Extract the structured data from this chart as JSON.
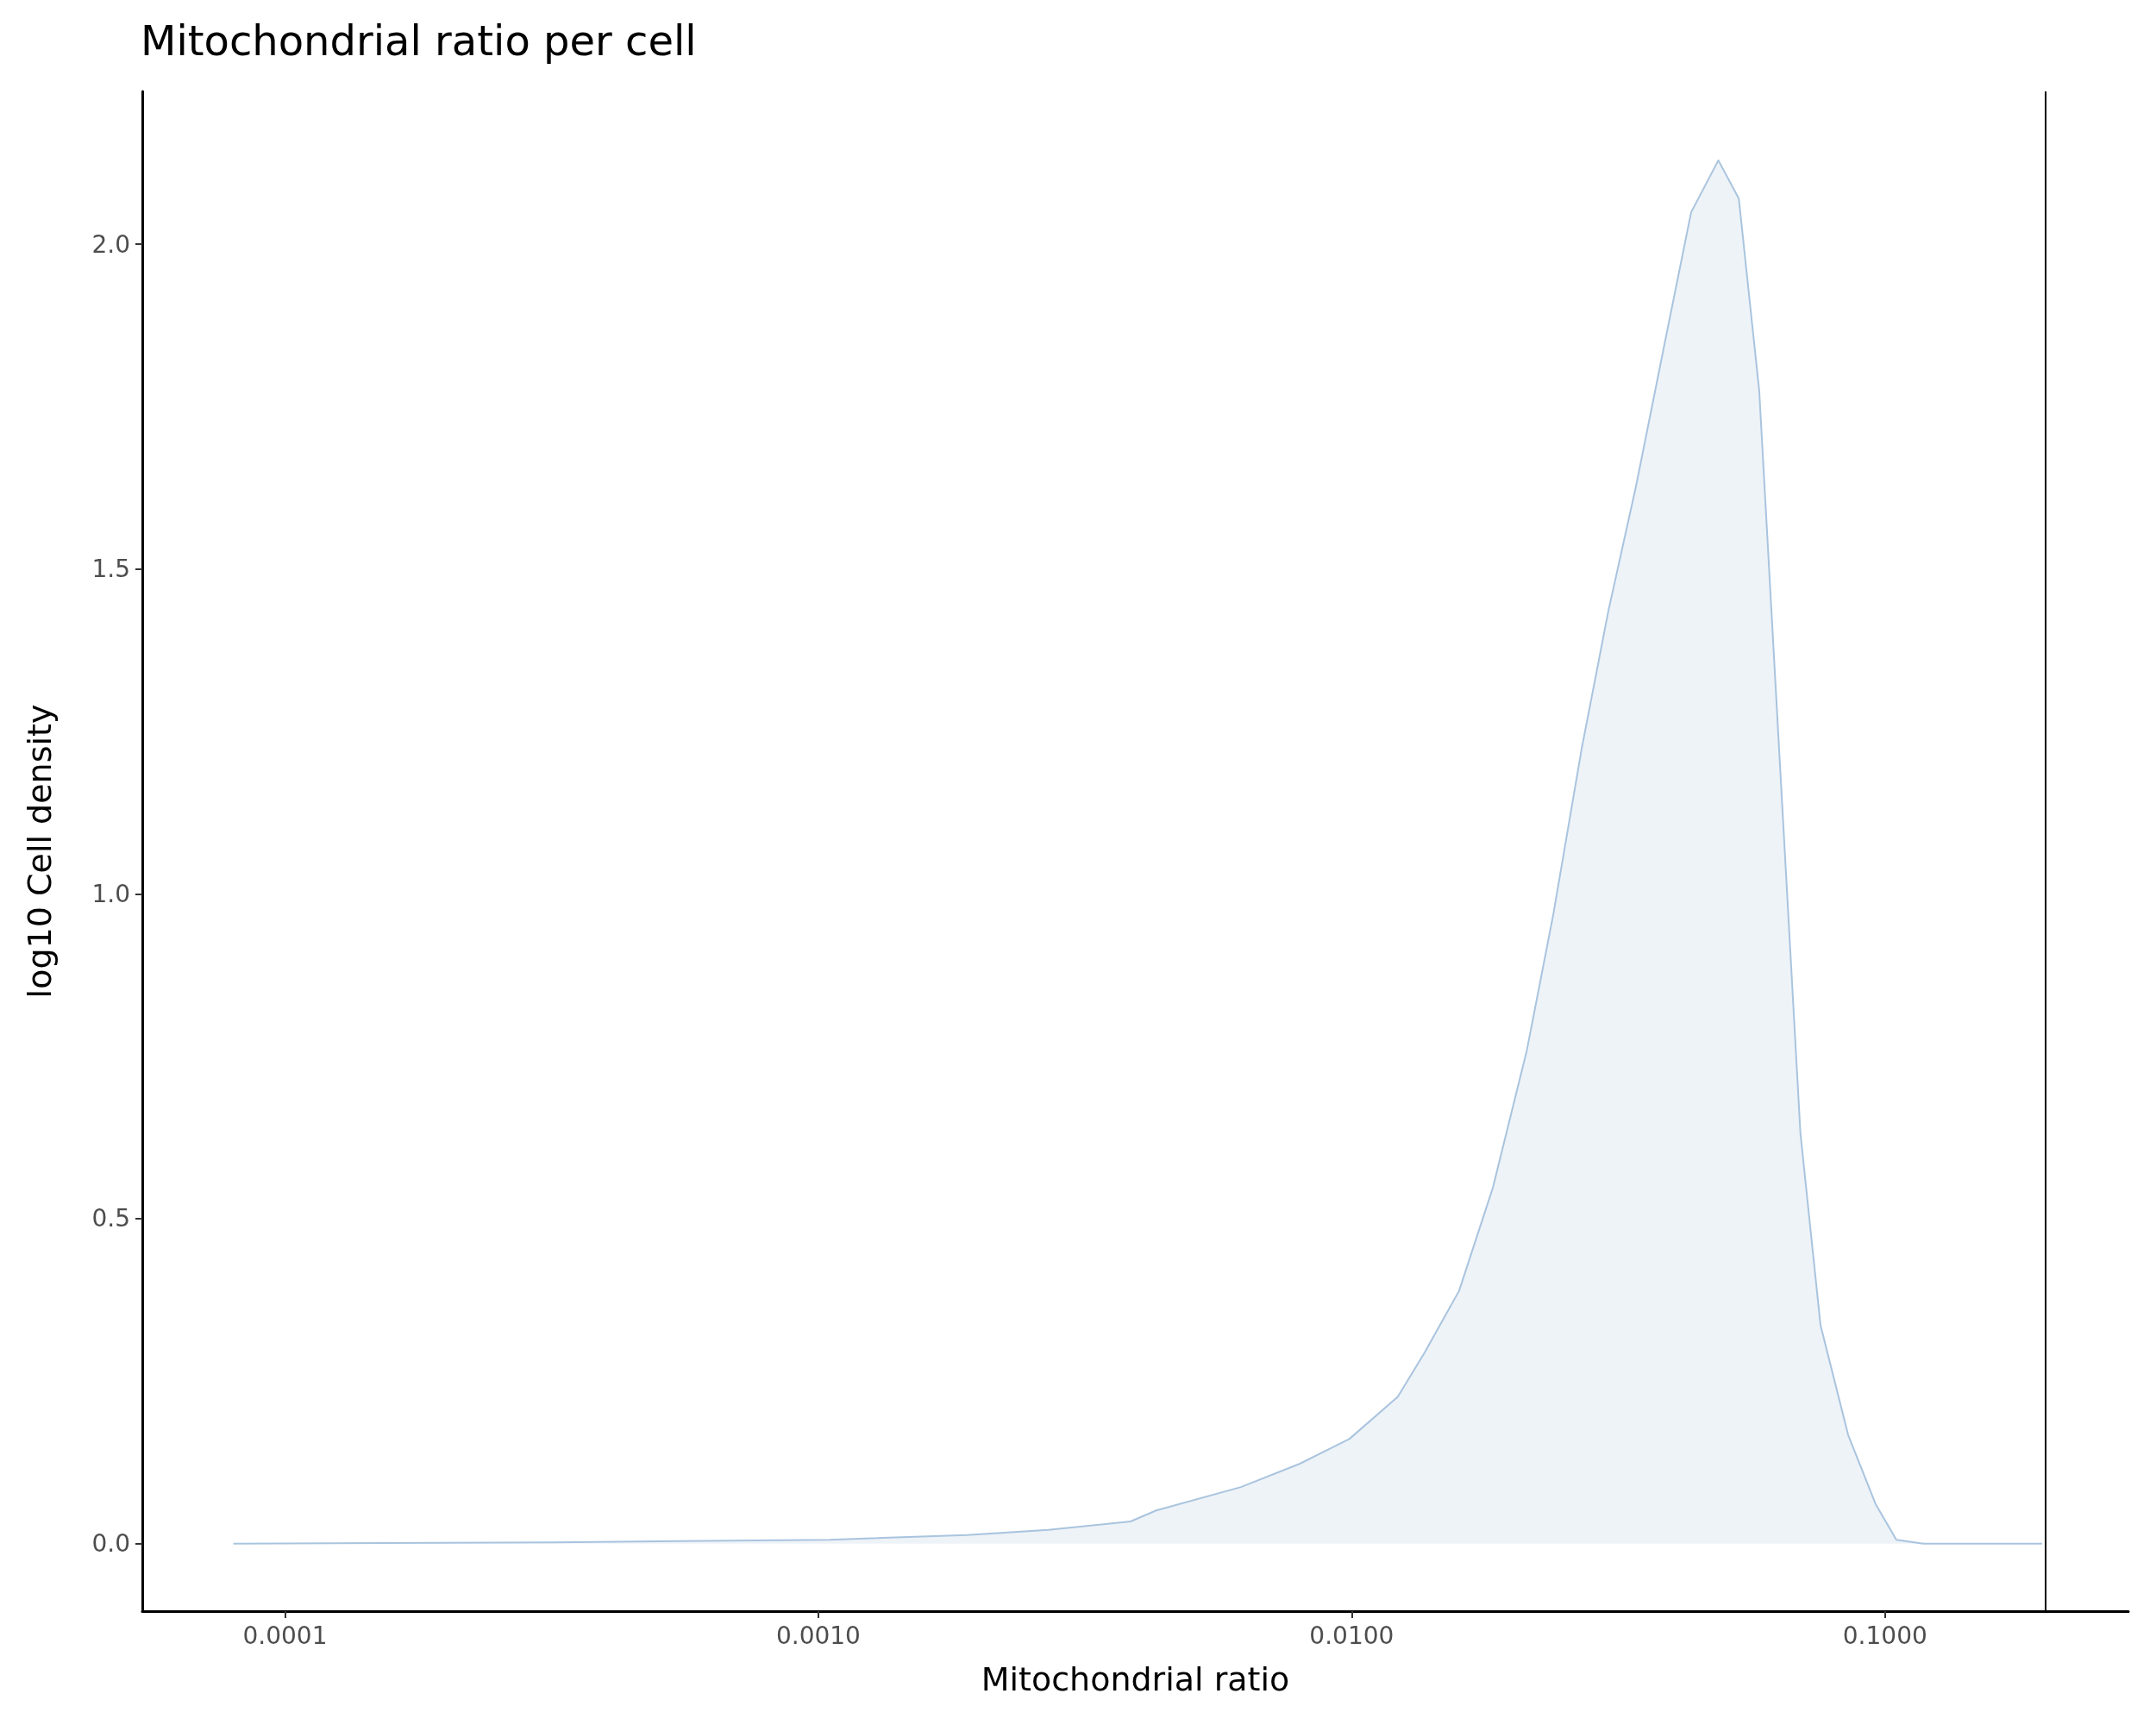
{
  "chart_data": {
    "type": "area",
    "title": "Mitochondrial ratio per cell",
    "xlabel": "Mitochondrial ratio",
    "ylabel": "log10 Cell density",
    "x": [
      8e-05,
      0.00032,
      0.00105,
      0.0019,
      0.0027,
      0.00385,
      0.0043,
      0.0062,
      0.008,
      0.0099,
      0.0122,
      0.0137,
      0.0159,
      0.0184,
      0.0213,
      0.0239,
      0.027,
      0.0303,
      0.0341,
      0.0384,
      0.0433,
      0.0487,
      0.0532,
      0.0581,
      0.0635,
      0.0694,
      0.0757,
      0.0853,
      0.096,
      0.105,
      0.118,
      0.197
    ],
    "series": [
      {
        "color": "#a9c4de",
        "values": [
          0,
          0.002,
          0.006,
          0.013,
          0.021,
          0.034,
          0.051,
          0.087,
          0.123,
          0.161,
          0.226,
          0.294,
          0.389,
          0.548,
          0.759,
          0.97,
          1.224,
          1.436,
          1.626,
          1.837,
          2.049,
          2.129,
          2.07,
          1.774,
          1.203,
          0.632,
          0.336,
          0.167,
          0.061,
          0.006,
          0,
          0
        ]
      }
    ],
    "log": "x",
    "xlim": [
      5.4e-05,
      0.286
    ],
    "xticks": [
      0.0001,
      {
        "value": 0.001,
        "label": "0.0010"
      },
      {
        "value": 0.01,
        "label": "0.0100"
      },
      {
        "value": 0.1,
        "label": "0.1000"
      }
    ],
    "ylim": [
      -0.104,
      2.235
    ],
    "yticks": [
      {
        "value": 0,
        "label": "0.0"
      },
      {
        "value": 0.5,
        "label": "0.5"
      },
      {
        "value": 1,
        "label": "1.0"
      },
      {
        "value": 1.5,
        "label": "1.5"
      },
      {
        "value": 2,
        "label": "2.0"
      }
    ],
    "ref_lines": [
      {
        "axis": "x",
        "value": 0.2,
        "color": "#000000"
      }
    ],
    "grid": false
  }
}
